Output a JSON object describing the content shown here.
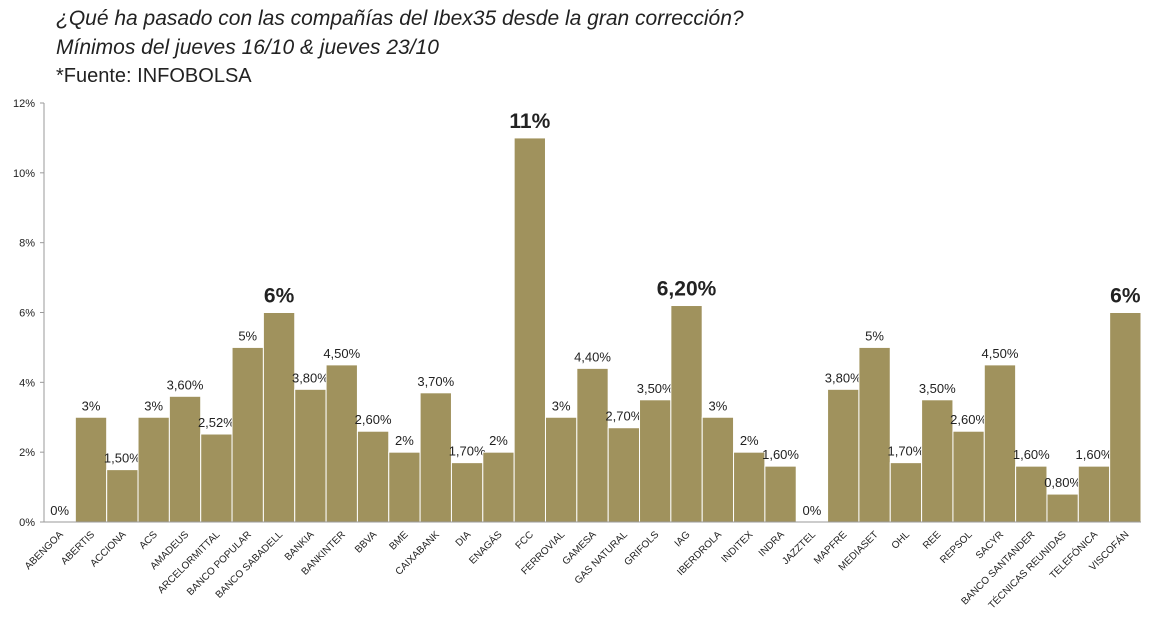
{
  "title": {
    "line1": "¿Qué ha pasado con las compañías del Ibex35 desde la gran corrección?",
    "line2": "Mínimos del jueves 16/10 & jueves 23/10",
    "source": "*Fuente: INFOBOLSA"
  },
  "chart_data": {
    "type": "bar",
    "categories": [
      "ABENGOA",
      "ABERTIS",
      "ACCIONA",
      "ACS",
      "AMADEUS",
      "ARCELORMITTAL",
      "BANCO POPULAR",
      "BANCO SABADELL",
      "BANKIA",
      "BANKINTER",
      "BBVA",
      "BME",
      "CAIXABANK",
      "DIA",
      "ENAGÁS",
      "FCC",
      "FERROVIAL",
      "GAMESA",
      "GAS NATURAL",
      "GRIFOLS",
      "IAG",
      "IBERDROLA",
      "INDITEX",
      "INDRA",
      "JAZZTEL",
      "MAPFRE",
      "MEDIASET",
      "OHL",
      "REE",
      "REPSOL",
      "SACYR",
      "BANCO SANTANDER",
      "TÉCNICAS REUNIDAS",
      "TELEFÓNICA",
      "VISCOFÁN"
    ],
    "values": [
      0,
      3,
      1.5,
      3,
      3.6,
      2.52,
      5,
      6,
      3.8,
      4.5,
      2.6,
      2,
      3.7,
      1.7,
      2,
      11,
      3,
      4.4,
      2.7,
      3.5,
      6.2,
      3,
      2,
      1.6,
      0,
      3.8,
      5,
      1.7,
      3.5,
      2.6,
      4.5,
      1.6,
      0.8,
      1.6,
      6
    ],
    "data_labels": [
      "0%",
      "3%",
      "1,50%",
      "3%",
      "3,60%",
      "2,52%",
      "5%",
      "6%",
      "3,80%",
      "4,50%",
      "2,60%",
      "2%",
      "3,70%",
      "1,70%",
      "2%",
      "11%",
      "3%",
      "4,40%",
      "2,70%",
      "3,50%",
      "6,20%",
      "3%",
      "2%",
      "1,60%",
      "0%",
      "3,80%",
      "5%",
      "1,70%",
      "3,50%",
      "2,60%",
      "4,50%",
      "1,60%",
      "0,80%",
      "1,60%",
      "6%"
    ],
    "highlighted": [
      7,
      15,
      20,
      34
    ],
    "y_ticks": [
      "0%",
      "2%",
      "4%",
      "6%",
      "8%",
      "10%",
      "12%"
    ],
    "ylim": [
      0,
      12
    ],
    "bar_color": "#A0925D",
    "grid": false,
    "title": "",
    "xlabel": "",
    "ylabel": ""
  }
}
